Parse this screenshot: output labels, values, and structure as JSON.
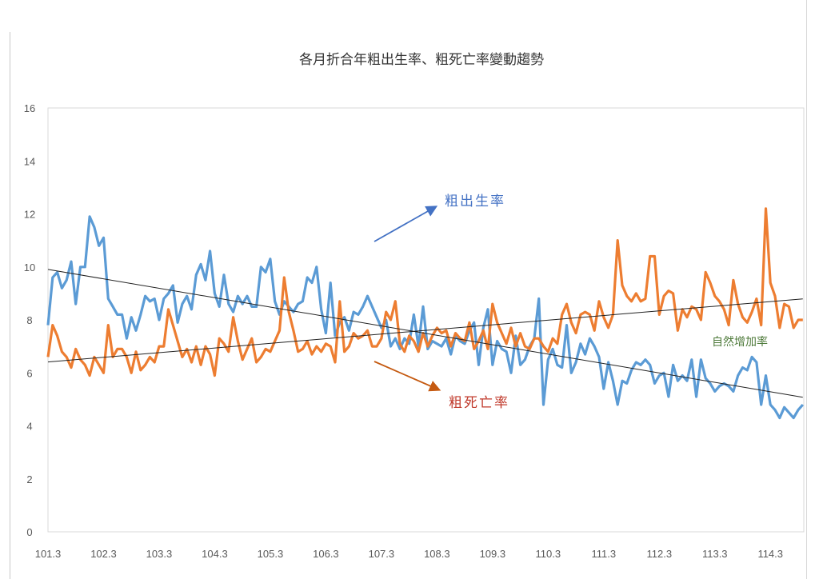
{
  "chart_data": {
    "type": "line",
    "title": "各月折合年粗出生率、粗死亡率變動趨勢",
    "xlabel": "",
    "ylabel": "",
    "ylim": [
      0,
      16
    ],
    "yticks": [
      "0",
      "2",
      "4",
      "6",
      "8",
      "10",
      "12",
      "14",
      "16"
    ],
    "xticks": [
      "101.3",
      "102.3",
      "103.3",
      "104.3",
      "105.3",
      "106.3",
      "107.3",
      "108.3",
      "109.3",
      "110.3",
      "111.3",
      "112.3",
      "113.3",
      "114.3"
    ],
    "x_start": "101.3",
    "x_end": "114.10",
    "grid": false,
    "trendlines": true,
    "series": [
      {
        "name": "粗出生率",
        "color": "#5B9BD5",
        "values": [
          7.8,
          9.6,
          9.8,
          9.2,
          9.5,
          10.2,
          8.6,
          10.0,
          10.0,
          11.9,
          11.5,
          10.8,
          11.1,
          8.8,
          8.5,
          8.2,
          8.2,
          7.3,
          8.1,
          7.6,
          8.2,
          8.9,
          8.7,
          8.8,
          8.0,
          8.8,
          9.0,
          9.3,
          7.9,
          8.6,
          8.9,
          8.4,
          9.7,
          10.1,
          9.5,
          10.6,
          9.0,
          8.5,
          9.7,
          8.6,
          8.3,
          8.9,
          8.6,
          8.9,
          8.5,
          8.5,
          10.0,
          9.8,
          10.3,
          8.7,
          8.2,
          8.7,
          8.5,
          8.3,
          8.6,
          8.7,
          9.6,
          9.4,
          10.0,
          8.4,
          7.5,
          9.4,
          7.4,
          7.9,
          8.1,
          7.6,
          8.3,
          8.2,
          8.5,
          8.9,
          8.5,
          8.1,
          7.7,
          8.0,
          7.0,
          7.3,
          6.9,
          7.3,
          7.1,
          8.2,
          7.0,
          8.5,
          6.9,
          7.2,
          7.1,
          7.0,
          7.3,
          6.7,
          7.4,
          7.2,
          7.1,
          7.6,
          7.9,
          6.3,
          7.7,
          8.4,
          6.3,
          7.2,
          6.9,
          6.8,
          6.0,
          7.4,
          6.3,
          6.5,
          7.0,
          7.3,
          8.8,
          4.8,
          6.5,
          6.9,
          6.3,
          6.2,
          7.8,
          6.0,
          6.4,
          7.1,
          6.7,
          7.3,
          7.0,
          6.6,
          5.4,
          6.4,
          5.7,
          4.8,
          5.7,
          5.6,
          6.1,
          6.4,
          6.3,
          6.5,
          6.3,
          5.6,
          5.9,
          6.0,
          5.1,
          6.3,
          5.7,
          5.9,
          5.7,
          6.5,
          5.1,
          6.5,
          5.8,
          5.6,
          5.3,
          5.5,
          5.6,
          5.5,
          5.3,
          5.9,
          6.2,
          6.1,
          6.6,
          6.4,
          4.8,
          5.9,
          4.8,
          4.6,
          4.3,
          4.7,
          4.5,
          4.3,
          4.6,
          4.8
        ]
      },
      {
        "name": "粗死亡率",
        "color": "#ED7D31",
        "values": [
          6.6,
          7.8,
          7.4,
          6.8,
          6.6,
          6.2,
          6.9,
          6.5,
          6.3,
          5.9,
          6.6,
          6.3,
          6.0,
          7.8,
          6.6,
          6.9,
          6.9,
          6.6,
          6.0,
          6.8,
          6.1,
          6.3,
          6.6,
          6.4,
          7.0,
          7.0,
          8.4,
          7.8,
          7.2,
          6.6,
          6.9,
          6.4,
          7.0,
          6.3,
          7.0,
          6.7,
          5.9,
          7.3,
          7.1,
          6.8,
          8.1,
          7.2,
          6.5,
          6.9,
          7.3,
          6.4,
          6.6,
          6.9,
          6.8,
          7.2,
          7.6,
          9.6,
          8.3,
          7.6,
          6.8,
          6.9,
          7.2,
          6.7,
          7.0,
          6.8,
          7.1,
          7.0,
          6.4,
          8.7,
          6.8,
          7.0,
          7.5,
          7.3,
          7.4,
          7.6,
          7.0,
          7.0,
          7.3,
          8.3,
          8.0,
          8.7,
          7.1,
          6.8,
          7.4,
          7.2,
          6.8,
          7.5,
          7.0,
          7.4,
          7.7,
          7.5,
          7.6,
          7.0,
          7.5,
          7.3,
          7.2,
          7.9,
          6.9,
          7.2,
          7.6,
          6.9,
          8.6,
          7.9,
          7.5,
          7.1,
          7.7,
          7.0,
          7.5,
          7.0,
          6.9,
          7.3,
          7.3,
          7.0,
          6.8,
          7.3,
          7.1,
          8.2,
          8.6,
          7.9,
          7.5,
          8.2,
          8.3,
          8.2,
          7.6,
          8.7,
          8.1,
          7.7,
          8.2,
          11.0,
          9.3,
          8.9,
          8.7,
          9.0,
          8.7,
          8.8,
          10.4,
          10.4,
          8.2,
          8.9,
          9.1,
          9.0,
          7.6,
          8.4,
          8.1,
          8.5,
          8.4,
          8.0,
          9.8,
          9.4,
          8.9,
          8.7,
          8.4,
          7.8,
          9.5,
          8.6,
          8.1,
          7.9,
          8.3,
          8.8,
          7.8,
          12.2,
          9.4,
          8.9,
          7.7,
          8.6,
          8.5,
          7.7,
          8.0,
          8.0
        ]
      }
    ],
    "annotations": [
      {
        "text": "粗出生率",
        "color": "#4472C4"
      },
      {
        "text": "粗死亡率",
        "color": "#C0392B"
      },
      {
        "text": "自然增加率",
        "color": "#4E7A3A"
      }
    ]
  }
}
